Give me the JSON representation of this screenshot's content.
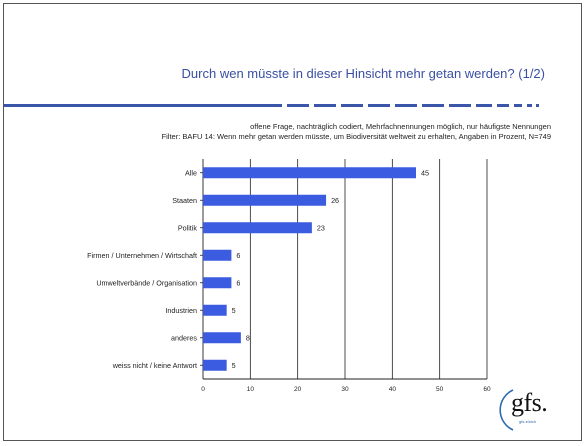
{
  "slide": {
    "title": "Durch wen müsste in dieser Hinsicht mehr getan werden? (1/2)",
    "subtitle_line1": "offene Frage, nachträglich codiert, Mehrfachnennungen möglich, nur häufigste Nennungen",
    "subtitle_line2": "Filter: BAFU 14: Wenn mehr getan werden müsste, um Biodiversität weltweit zu erhalten, Angaben in Prozent, N=749",
    "logo_text": "gfs.",
    "logo_sub": "gfs.zürich"
  },
  "colors": {
    "bar": "#3b5be0",
    "title": "#3a4fa3",
    "divider": "#3b56a8"
  },
  "chart_data": {
    "type": "bar",
    "orientation": "horizontal",
    "categories": [
      "Alle",
      "Staaten",
      "Politik",
      "Firmen / Unternehmen / Wirtschaft",
      "Umweltverbände / Organisation",
      "Industrien",
      "anderes",
      "weiss nicht / keine Antwort"
    ],
    "values": [
      45,
      26,
      23,
      6,
      6,
      5,
      8,
      5
    ],
    "xlim": [
      0,
      60
    ],
    "xticks": [
      0,
      10,
      20,
      30,
      40,
      50,
      60
    ],
    "title": "",
    "xlabel": "",
    "ylabel": "",
    "grid": true
  }
}
